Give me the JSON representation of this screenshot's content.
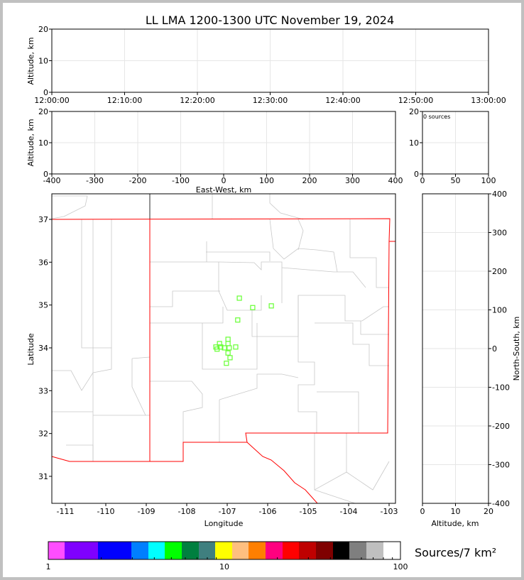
{
  "title": "LL LMA 1200-1300 UTC November 19, 2024",
  "colors": {
    "points": "#66ff33",
    "state_border": "#ff0000",
    "county": "#c8c8c8",
    "grid": "#e6e6e6"
  },
  "chart_data": [
    {
      "type": "scatter",
      "name": "time-altitude",
      "ylabel": "Altitude, km",
      "ylim": [
        0,
        20
      ],
      "yticks": [
        "0",
        "10",
        "20"
      ],
      "xticks": [
        "12:00:00",
        "12:10:00",
        "12:20:00",
        "12:30:00",
        "12:40:00",
        "12:50:00",
        "13:00:00"
      ],
      "points": []
    },
    {
      "type": "scatter",
      "name": "ew-altitude",
      "xlabel": "East-West, km",
      "ylabel": "Altitude, km",
      "xlim": [
        -400,
        400
      ],
      "ylim": [
        0,
        20
      ],
      "xticks": [
        "-400",
        "-300",
        "-200",
        "-100",
        "0",
        "100",
        "200",
        "300",
        "400"
      ],
      "yticks": [
        "0",
        "10",
        "20"
      ],
      "points": []
    },
    {
      "type": "histogram",
      "name": "altitude-histogram",
      "annotation": "0 sources",
      "xlim": [
        0,
        100
      ],
      "ylim": [
        0,
        20
      ],
      "xticks": [
        "0",
        "50",
        "100"
      ],
      "yticks": [
        "0",
        "10",
        "20"
      ]
    },
    {
      "type": "scatter",
      "name": "plan-view",
      "xlabel": "Longitude",
      "ylabel": "Latitude",
      "xlim": [
        -111.5,
        -102.85
      ],
      "ylim": [
        30.4,
        37.6
      ],
      "xticks": [
        "-111",
        "-110",
        "-109",
        "-108",
        "-107",
        "-106",
        "-105",
        "-104",
        "-103"
      ],
      "yticks": [
        "31",
        "32",
        "33",
        "34",
        "35",
        "36",
        "37"
      ],
      "points": [
        [
          -106.7,
          35.16
        ],
        [
          -106.37,
          34.94
        ],
        [
          -105.91,
          34.98
        ],
        [
          -106.74,
          34.65
        ],
        [
          -106.98,
          34.2
        ],
        [
          -106.98,
          34.1
        ],
        [
          -107.19,
          34.1
        ],
        [
          -107.28,
          34.02
        ],
        [
          -107.16,
          34.02
        ],
        [
          -107.07,
          34.0
        ],
        [
          -106.95,
          34.0
        ],
        [
          -106.79,
          34.02
        ],
        [
          -107.25,
          33.97
        ],
        [
          -106.98,
          33.88
        ],
        [
          -106.93,
          33.77
        ],
        [
          -107.02,
          33.64
        ]
      ]
    },
    {
      "type": "scatter",
      "name": "ns-altitude",
      "xlabel": "Altitude, km",
      "ylabel": "North-South, km",
      "xlim": [
        0,
        20
      ],
      "ylim": [
        -400,
        400
      ],
      "xticks": [
        "0",
        "10",
        "20"
      ],
      "yticks": [
        "-400",
        "-300",
        "-200",
        "-100",
        "0",
        "100",
        "200",
        "300",
        "400"
      ],
      "points": []
    }
  ],
  "colorbar": {
    "label": "Sources/7 km²",
    "ticks": [
      "1",
      "10",
      "100"
    ],
    "colors": [
      "#ff4dff",
      "#7f00ff",
      "#7f00ff",
      "#0000ff",
      "#0000ff",
      "#007fff",
      "#00ffff",
      "#00ff00",
      "#007f3f",
      "#3f7f7f",
      "#ffff00",
      "#ffbf7f",
      "#ff7f00",
      "#ff007f",
      "#ff0000",
      "#bf0000",
      "#7f0000",
      "#000000",
      "#7f7f7f",
      "#bfbfbf",
      "#ffffff"
    ]
  }
}
